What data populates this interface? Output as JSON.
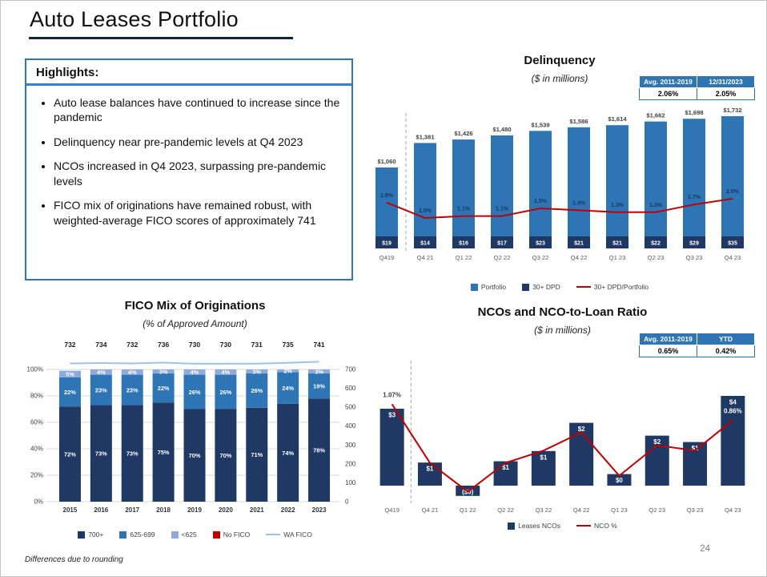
{
  "slide": {
    "title": "Auto Leases Portfolio",
    "page_number": "24",
    "footnote": "Differences due to rounding"
  },
  "highlights": {
    "title": "Highlights:",
    "bullets": [
      "Auto lease balances have continued to increase since the pandemic",
      "Delinquency near pre-pandemic levels at Q4 2023",
      "NCOs increased in Q4 2023, surpassing pre-pandemic levels",
      "FICO mix of originations have remained robust, with weighted-average FICO scores of approximately 741"
    ]
  },
  "colors": {
    "portfolio_blue": "#2E75B6",
    "navy": "#1F3864",
    "light_blue": "#8EAADB",
    "red": "#C00000",
    "wa_fico_line": "#9DC3E6",
    "grid": "#D9D9D9",
    "axis_text": "#595959",
    "separator": "#A6A6A6"
  },
  "chart_data": [
    {
      "id": "delinquency",
      "type": "bar+line",
      "title": "Delinquency",
      "subtitle": "($ in millions)",
      "stats": {
        "headers": [
          "Avg. 2011-2019",
          "12/31/2023"
        ],
        "values": [
          "2.06%",
          "2.05%"
        ]
      },
      "categories": [
        "Q419",
        "Q4 21",
        "Q1 22",
        "Q2 22",
        "Q3 22",
        "Q4 22",
        "Q1 23",
        "Q2 23",
        "Q3 23",
        "Q4 23"
      ],
      "series": [
        {
          "name": "Portfolio",
          "type": "bar",
          "values": [
            1060,
            1381,
            1426,
            1480,
            1539,
            1586,
            1614,
            1662,
            1698,
            1732
          ],
          "labels": [
            "$1,060",
            "$1,381",
            "$1,426",
            "$1,480",
            "$1,539",
            "$1,586",
            "$1,614",
            "$1,662",
            "$1,698",
            "$1,732"
          ]
        },
        {
          "name": "30+ DPD",
          "type": "bar",
          "values": [
            19,
            14,
            16,
            17,
            23,
            21,
            21,
            22,
            29,
            35
          ],
          "labels": [
            "$19",
            "$14",
            "$16",
            "$17",
            "$23",
            "$21",
            "$21",
            "$22",
            "$29",
            "$35"
          ]
        },
        {
          "name": "30+ DPD/Portfolio",
          "type": "line",
          "values": [
            1.8,
            1.0,
            1.1,
            1.1,
            1.5,
            1.4,
            1.3,
            1.3,
            1.7,
            2.0
          ],
          "labels": [
            "1.8%",
            "1.0%",
            "1.1%",
            "1.1%",
            "1.5%",
            "1.4%",
            "1.3%",
            "1.3%",
            "1.7%",
            "2.0%"
          ]
        }
      ],
      "legend": [
        {
          "label": "Portfolio",
          "swatch": "rect",
          "color": "#2E75B6"
        },
        {
          "label": "30+ DPD",
          "swatch": "rect",
          "color": "#1F3864"
        },
        {
          "label": "30+ DPD/Portfolio",
          "swatch": "line",
          "color": "#C00000"
        }
      ]
    },
    {
      "id": "fico_mix",
      "type": "stacked-bar+line",
      "title": "FICO Mix of Originations",
      "subtitle": "(% of Approved Amount)",
      "categories": [
        "2015",
        "2016",
        "2017",
        "2018",
        "2019",
        "2020",
        "2021",
        "2022",
        "2023"
      ],
      "series": [
        {
          "name": "700+",
          "color": "#1F3864",
          "values": [
            72,
            73,
            73,
            75,
            70,
            70,
            71,
            74,
            78
          ],
          "labels": [
            "72%",
            "73%",
            "73%",
            "75%",
            "70%",
            "70%",
            "71%",
            "74%",
            "78%"
          ]
        },
        {
          "name": "625-699",
          "color": "#2E75B6",
          "values": [
            22,
            23,
            23,
            22,
            26,
            26,
            26,
            24,
            19
          ],
          "labels": [
            "22%",
            "23%",
            "23%",
            "22%",
            "26%",
            "26%",
            "26%",
            "24%",
            "19%"
          ]
        },
        {
          "name": "<625",
          "color": "#8EAADB",
          "values": [
            5,
            4,
            4,
            3,
            4,
            4,
            3,
            2,
            3
          ],
          "labels": [
            "5%",
            "4%",
            "4%",
            "3%",
            "4%",
            "4%",
            "3%",
            "2%",
            "3%"
          ]
        },
        {
          "name": "No FICO",
          "color": "#C00000",
          "values": [
            0,
            0,
            0,
            0,
            0,
            0,
            0,
            0,
            0
          ],
          "labels": [
            "",
            "",
            "",
            "",
            "",
            "",
            "",
            "",
            ""
          ]
        }
      ],
      "wa_fico": {
        "name": "WA FICO",
        "color": "#9DC3E6",
        "values": [
          732,
          734,
          732,
          736,
          730,
          730,
          731,
          735,
          741
        ]
      },
      "y_left": {
        "ticks": [
          "0%",
          "20%",
          "40%",
          "60%",
          "80%",
          "100%"
        ],
        "max": 100
      },
      "y_right": {
        "ticks": [
          "0",
          "100",
          "200",
          "300",
          "400",
          "500",
          "600",
          "700"
        ],
        "max": 700
      },
      "legend": [
        {
          "label": "700+",
          "swatch": "rect",
          "color": "#1F3864"
        },
        {
          "label": "625-699",
          "swatch": "rect",
          "color": "#2E75B6"
        },
        {
          "label": "<625",
          "swatch": "rect",
          "color": "#8EAADB"
        },
        {
          "label": "No FICO",
          "swatch": "rect",
          "color": "#C00000"
        },
        {
          "label": "WA FICO",
          "swatch": "line",
          "color": "#9DC3E6"
        }
      ]
    },
    {
      "id": "ncos",
      "type": "bar+line",
      "title": "NCOs and NCO-to-Loan Ratio",
      "subtitle": "($ in millions)",
      "stats": {
        "headers": [
          "Avg. 2011-2019",
          "YTD"
        ],
        "values": [
          "0.65%",
          "0.42%"
        ]
      },
      "categories": [
        "Q419",
        "Q4 21",
        "Q1 22",
        "Q2 22",
        "Q3 22",
        "Q4 22",
        "Q1 23",
        "Q2 23",
        "Q3 23",
        "Q4 23"
      ],
      "bars": {
        "name": "Leases NCOs",
        "labels": [
          "$3",
          "$1",
          "($0)",
          "$1",
          "$1",
          "$2",
          "$0",
          "$2",
          "$1",
          "$4"
        ],
        "values": [
          3,
          1,
          0,
          1,
          1,
          2,
          0,
          2,
          1,
          4
        ],
        "values_est": [
          3.0,
          0.9,
          -0.4,
          0.95,
          1.35,
          2.45,
          0.45,
          1.95,
          1.7,
          3.5
        ]
      },
      "line": {
        "name": "NCO %",
        "labels": {
          "first": "1.07%",
          "last": "0.86%"
        },
        "values_est": [
          1.07,
          0.3,
          -0.08,
          0.3,
          0.46,
          0.7,
          0.13,
          0.53,
          0.46,
          0.86
        ]
      },
      "legend": [
        {
          "label": "Leases NCOs",
          "swatch": "rect",
          "color": "#1F3864"
        },
        {
          "label": "NCO %",
          "swatch": "line",
          "color": "#C00000"
        }
      ]
    }
  ]
}
